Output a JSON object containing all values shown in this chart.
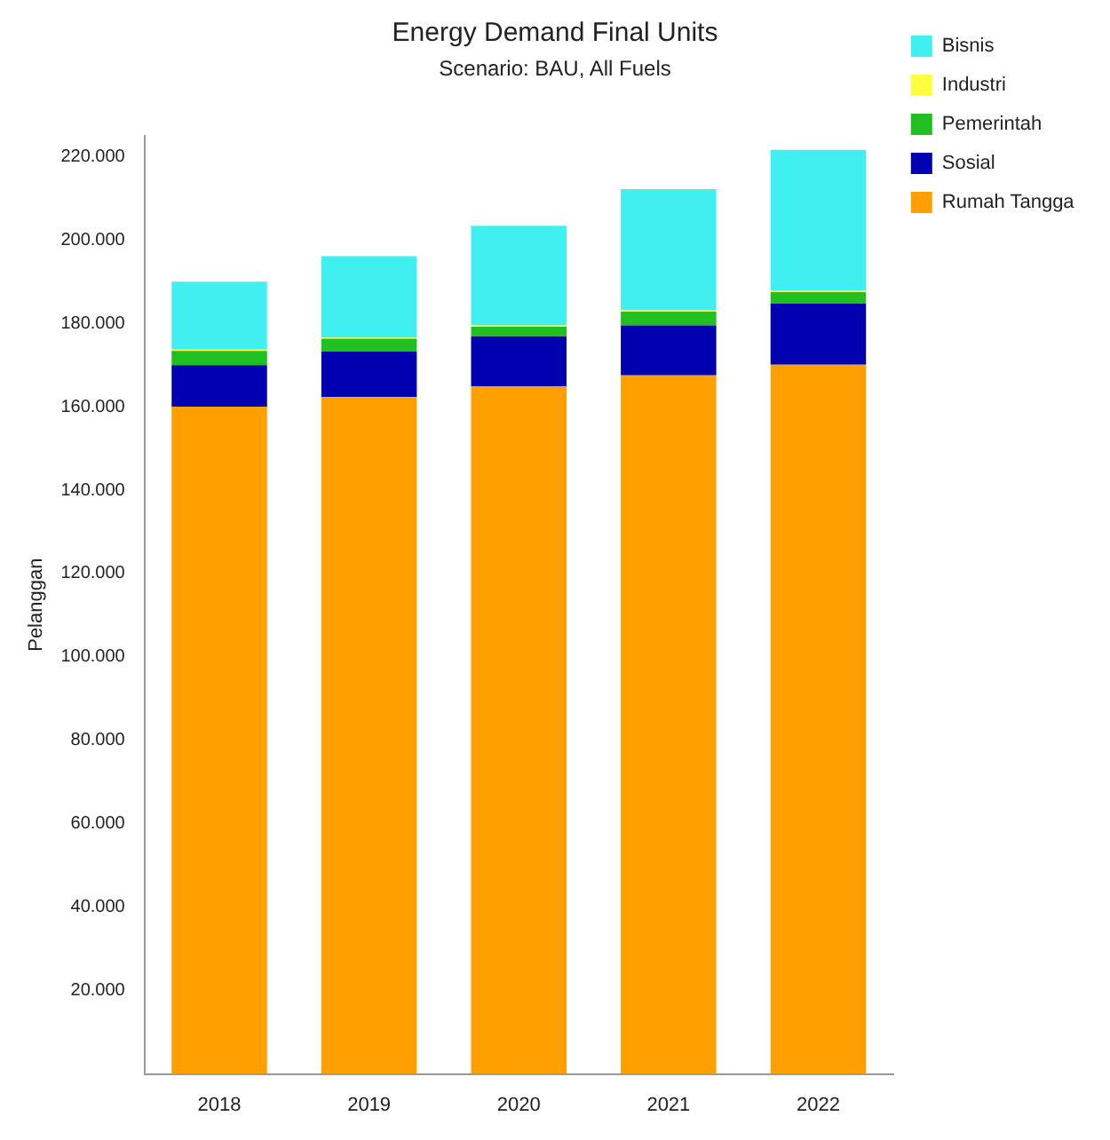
{
  "chart_data": {
    "type": "bar",
    "title": "Energy Demand Final Units",
    "subtitle": "Scenario: BAU, All Fuels",
    "ylabel": "Pelanggan",
    "stacked": true,
    "legend": "right",
    "grid": false,
    "categories": [
      "2018",
      "2019",
      "2020",
      "2021",
      "2022"
    ],
    "series": [
      {
        "name": "Rumah Tangga",
        "color": "#ffa000",
        "values": [
          160000,
          162300,
          164900,
          167500,
          170100
        ]
      },
      {
        "name": "Sosial",
        "color": "#0000b0",
        "values": [
          10000,
          10900,
          12000,
          12000,
          14600
        ]
      },
      {
        "name": "Pemerintah",
        "color": "#20c020",
        "values": [
          3400,
          3100,
          2300,
          3300,
          2800
        ]
      },
      {
        "name": "Industri",
        "color": "#ffff40",
        "values": [
          300,
          300,
          300,
          300,
          300
        ]
      },
      {
        "name": "Bisnis",
        "color": "#40f0f0",
        "values": [
          16300,
          19500,
          23900,
          29100,
          33800
        ]
      }
    ],
    "ylim": [
      0,
      225000
    ],
    "yticks": [
      {
        "value": 20000,
        "label": "20.000"
      },
      {
        "value": 40000,
        "label": "40.000"
      },
      {
        "value": 60000,
        "label": "60.000"
      },
      {
        "value": 80000,
        "label": "80.000"
      },
      {
        "value": 100000,
        "label": "100.000"
      },
      {
        "value": 120000,
        "label": "120.000"
      },
      {
        "value": 140000,
        "label": "140.000"
      },
      {
        "value": 160000,
        "label": "160.000"
      },
      {
        "value": 180000,
        "label": "180.000"
      },
      {
        "value": 200000,
        "label": "200.000"
      },
      {
        "value": 220000,
        "label": "220.000"
      }
    ]
  }
}
